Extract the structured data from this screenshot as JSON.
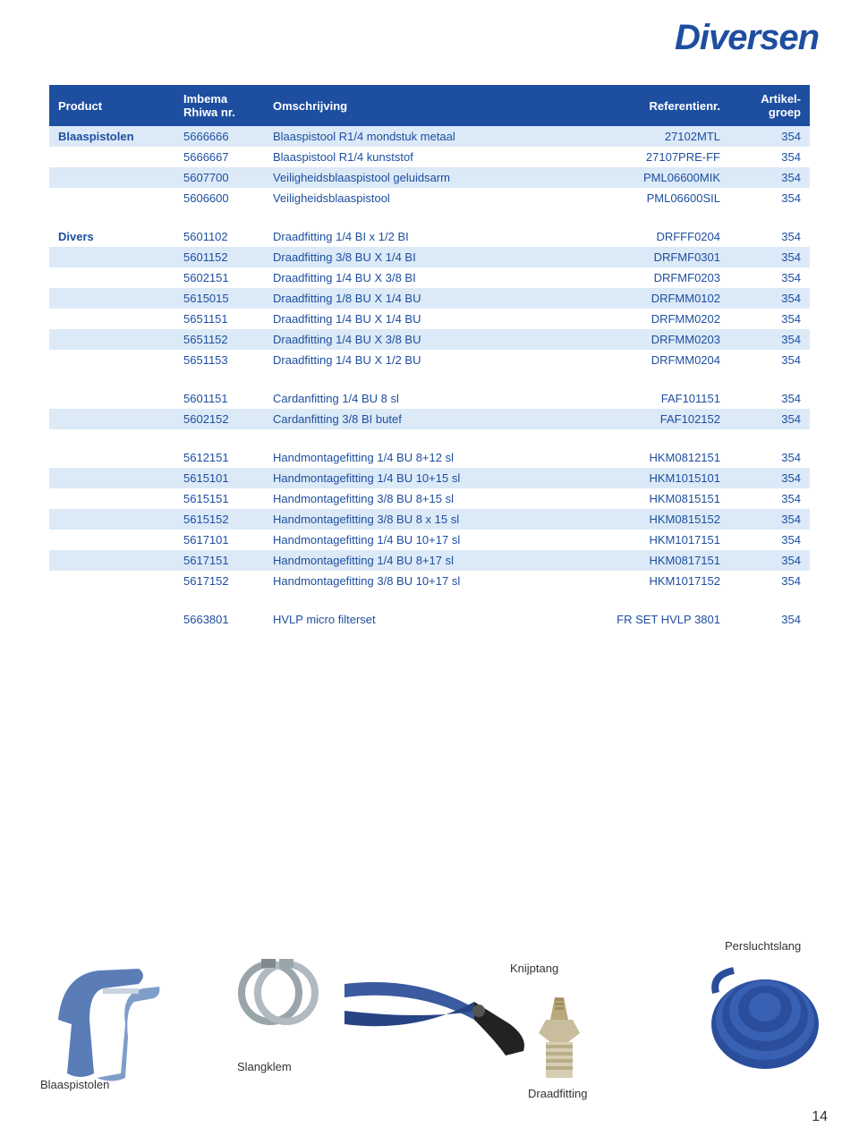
{
  "title": "Diversen",
  "page_number": "14",
  "header": {
    "c1": "Product",
    "c2": "Imbema Rhiwa nr.",
    "c3": "Omschrijving",
    "c4": "Referentienr.",
    "c5": "Artikel-groep"
  },
  "colors": {
    "brand_blue": "#1e4ea0",
    "row_alt": "#dceaf7",
    "white": "#ffffff",
    "hose_blue": "#2a4e9b",
    "metal_gray": "#9aa4ab",
    "dark_metal": "#3a4a55",
    "handle_blue": "#3b5ba0"
  },
  "rows": [
    {
      "product": "Blaaspistolen",
      "nr": "5666666",
      "desc": "Blaaspistool R1/4 mondstuk metaal",
      "ref": "27102MTL",
      "grp": "354",
      "alt": true
    },
    {
      "product": "",
      "nr": "5666667",
      "desc": "Blaaspistool R1/4 kunststof",
      "ref": "27107PRE-FF",
      "grp": "354",
      "alt": false
    },
    {
      "product": "",
      "nr": "5607700",
      "desc": "Veiligheidsblaaspistool geluidsarm",
      "ref": "PML06600MIK",
      "grp": "354",
      "alt": true
    },
    {
      "product": "",
      "nr": "5606600",
      "desc": "Veiligheidsblaaspistool",
      "ref": "PML06600SIL",
      "grp": "354",
      "alt": false
    },
    {
      "spacer": true
    },
    {
      "product": "Divers",
      "nr": "5601102",
      "desc": "Draadfitting 1/4 BI x 1/2 BI",
      "ref": "DRFFF0204",
      "grp": "354",
      "alt": false
    },
    {
      "product": "",
      "nr": "5601152",
      "desc": "Draadfitting 3/8 BU X 1/4 BI",
      "ref": "DRFMF0301",
      "grp": "354",
      "alt": true
    },
    {
      "product": "",
      "nr": "5602151",
      "desc": "Draadfitting 1/4 BU X 3/8 BI",
      "ref": "DRFMF0203",
      "grp": "354",
      "alt": false
    },
    {
      "product": "",
      "nr": "5615015",
      "desc": "Draadfitting 1/8 BU X 1/4 BU",
      "ref": "DRFMM0102",
      "grp": "354",
      "alt": true
    },
    {
      "product": "",
      "nr": "5651151",
      "desc": "Draadfitting 1/4 BU X 1/4 BU",
      "ref": "DRFMM0202",
      "grp": "354",
      "alt": false
    },
    {
      "product": "",
      "nr": "5651152",
      "desc": "Draadfitting 1/4 BU X 3/8 BU",
      "ref": "DRFMM0203",
      "grp": "354",
      "alt": true
    },
    {
      "product": "",
      "nr": "5651153",
      "desc": "Draadfitting 1/4 BU X 1/2 BU",
      "ref": "DRFMM0204",
      "grp": "354",
      "alt": false
    },
    {
      "spacer": true
    },
    {
      "product": "",
      "nr": "5601151",
      "desc": "Cardanfitting 1/4 BU 8 sl",
      "ref": "FAF101151",
      "grp": "354",
      "alt": false
    },
    {
      "product": "",
      "nr": "5602152",
      "desc": "Cardanfitting 3/8 BI butef",
      "ref": "FAF102152",
      "grp": "354",
      "alt": true
    },
    {
      "spacer": true
    },
    {
      "product": "",
      "nr": "5612151",
      "desc": "Handmontagefitting 1/4 BU 8+12 sl",
      "ref": "HKM0812151",
      "grp": "354",
      "alt": false
    },
    {
      "product": "",
      "nr": "5615101",
      "desc": "Handmontagefitting 1/4 BU 10+15 sl",
      "ref": "HKM1015101",
      "grp": "354",
      "alt": true
    },
    {
      "product": "",
      "nr": "5615151",
      "desc": "Handmontagefitting 3/8 BU 8+15 sl",
      "ref": "HKM0815151",
      "grp": "354",
      "alt": false
    },
    {
      "product": "",
      "nr": "5615152",
      "desc": "Handmontagefitting 3/8 BU 8 x 15 sl",
      "ref": "HKM0815152",
      "grp": "354",
      "alt": true
    },
    {
      "product": "",
      "nr": "5617101",
      "desc": "Handmontagefitting 1/4 BU 10+17 sl",
      "ref": "HKM1017151",
      "grp": "354",
      "alt": false
    },
    {
      "product": "",
      "nr": "5617151",
      "desc": "Handmontagefitting 1/4 BU 8+17 sl",
      "ref": "HKM0817151",
      "grp": "354",
      "alt": true
    },
    {
      "product": "",
      "nr": "5617152",
      "desc": "Handmontagefitting 3/8 BU 10+17 sl",
      "ref": "HKM1017152",
      "grp": "354",
      "alt": false
    },
    {
      "spacer": true
    },
    {
      "product": "",
      "nr": "5663801",
      "desc": "HVLP micro filterset",
      "ref": "FR SET HVLP 3801",
      "grp": "354",
      "alt": false
    }
  ],
  "labels": {
    "knijptang": "Knijptang",
    "persluchtslang": "Persluchtslang",
    "blaaspistolen": "Blaaspistolen",
    "slangklem": "Slangklem",
    "draadfitting": "Draadfitting"
  }
}
